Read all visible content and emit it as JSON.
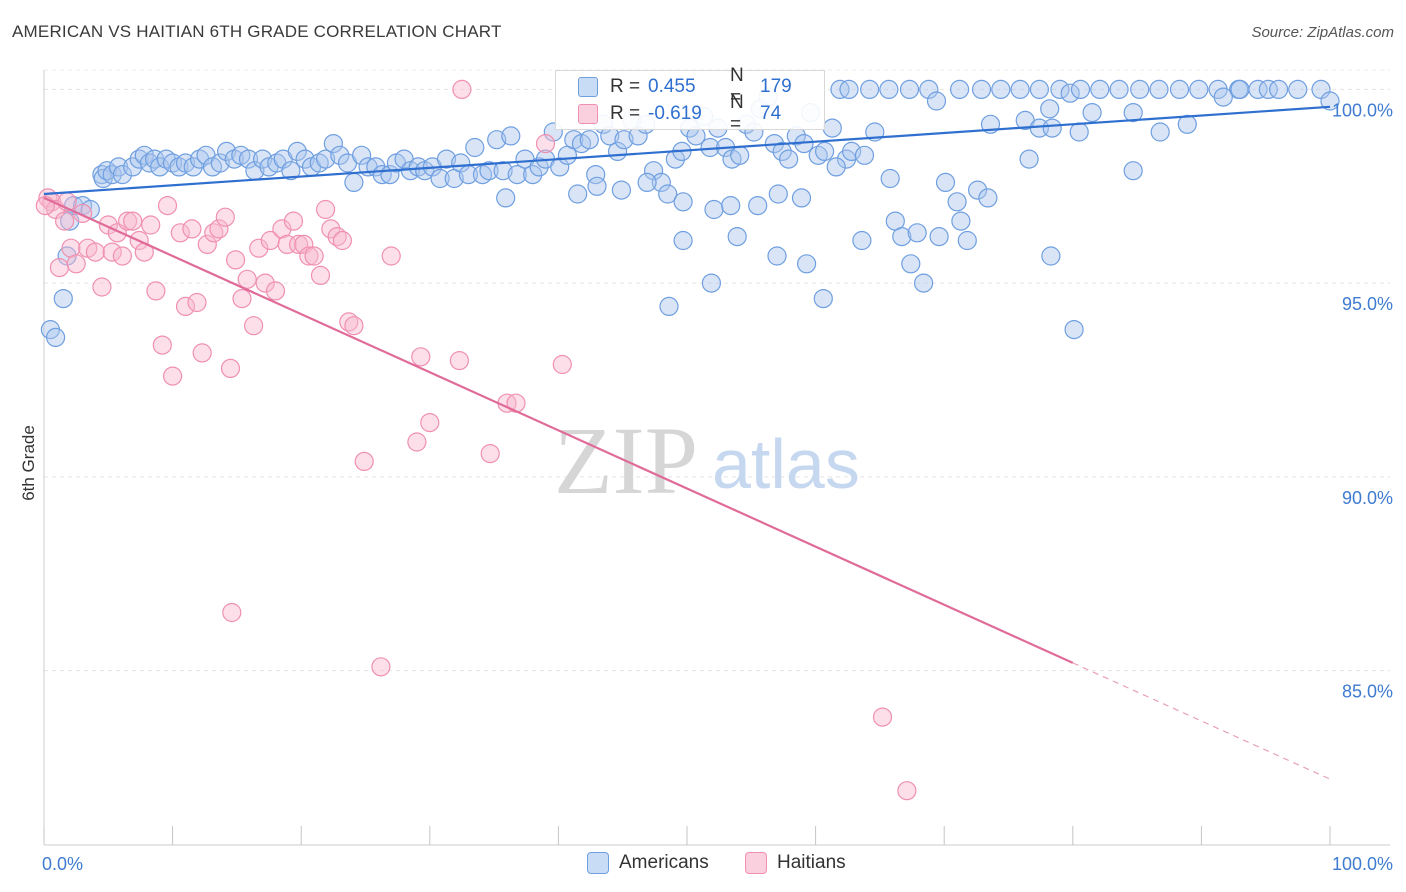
{
  "header": {
    "title": "AMERICAN VS HAITIAN 6TH GRADE CORRELATION CHART",
    "source": "Source: ZipAtlas.com"
  },
  "watermark": {
    "part1": "ZIP",
    "part2": "atlas"
  },
  "legend": {
    "rows": [
      {
        "r_label": "R =",
        "r_value": "0.455",
        "n_label": "N =",
        "n_value": "179",
        "color": "#6f9fe0"
      },
      {
        "r_label": "R =",
        "r_value": "-0.619",
        "n_label": "N =",
        "n_value": "74",
        "color": "#f090b0"
      }
    ]
  },
  "chart_data": {
    "type": "scatter",
    "title": "AMERICAN VS HAITIAN 6TH GRADE CORRELATION CHART",
    "xlabel": "",
    "ylabel": "6th Grade",
    "xlim": [
      0,
      100
    ],
    "ylim": [
      80.5,
      100.5
    ],
    "x_tick_labels": [
      "0.0%",
      "100.0%"
    ],
    "y_ticks": [
      85,
      90,
      95,
      100
    ],
    "y_tick_labels": [
      "85.0%",
      "90.0%",
      "95.0%",
      "100.0%"
    ],
    "grid": true,
    "legend_position": "top-center",
    "series": [
      {
        "name": "Americans",
        "color": "#6f9fe0",
        "trend": {
          "x": [
            0,
            100
          ],
          "y": [
            97.3,
            99.55
          ],
          "style": "solid"
        },
        "points": [
          [
            0.5,
            93.8
          ],
          [
            0.9,
            93.6
          ],
          [
            1.5,
            94.6
          ],
          [
            1.8,
            95.7
          ],
          [
            2.0,
            96.6
          ],
          [
            2.3,
            97.0
          ],
          [
            3.0,
            97.0
          ],
          [
            3.6,
            96.9
          ],
          [
            4.5,
            97.8
          ],
          [
            4.6,
            97.7
          ],
          [
            4.9,
            97.9
          ],
          [
            5.3,
            97.8
          ],
          [
            5.8,
            98.0
          ],
          [
            6.1,
            97.8
          ],
          [
            6.9,
            98.0
          ],
          [
            7.4,
            98.2
          ],
          [
            7.8,
            98.3
          ],
          [
            8.2,
            98.1
          ],
          [
            8.6,
            98.2
          ],
          [
            9.0,
            98.0
          ],
          [
            9.5,
            98.2
          ],
          [
            10.0,
            98.1
          ],
          [
            10.5,
            98.0
          ],
          [
            11.0,
            98.1
          ],
          [
            11.6,
            98.0
          ],
          [
            12.1,
            98.2
          ],
          [
            12.6,
            98.3
          ],
          [
            13.1,
            98.0
          ],
          [
            13.7,
            98.1
          ],
          [
            14.2,
            98.4
          ],
          [
            14.8,
            98.2
          ],
          [
            15.3,
            98.3
          ],
          [
            15.9,
            98.2
          ],
          [
            16.4,
            97.9
          ],
          [
            17.0,
            98.2
          ],
          [
            17.5,
            98.0
          ],
          [
            18.1,
            98.1
          ],
          [
            18.6,
            98.2
          ],
          [
            19.2,
            97.9
          ],
          [
            19.7,
            98.4
          ],
          [
            20.3,
            98.2
          ],
          [
            20.8,
            98.0
          ],
          [
            21.4,
            98.1
          ],
          [
            21.9,
            98.2
          ],
          [
            22.5,
            98.6
          ],
          [
            23.0,
            98.3
          ],
          [
            23.6,
            98.1
          ],
          [
            24.1,
            97.6
          ],
          [
            24.7,
            98.3
          ],
          [
            25.2,
            98.0
          ],
          [
            25.8,
            98.0
          ],
          [
            26.3,
            97.8
          ],
          [
            26.9,
            97.8
          ],
          [
            27.4,
            98.1
          ],
          [
            28.0,
            98.2
          ],
          [
            28.5,
            97.9
          ],
          [
            29.1,
            98.0
          ],
          [
            29.6,
            97.9
          ],
          [
            30.2,
            98.0
          ],
          [
            30.8,
            97.7
          ],
          [
            31.3,
            98.2
          ],
          [
            31.9,
            97.7
          ],
          [
            32.4,
            98.1
          ],
          [
            33.0,
            97.8
          ],
          [
            33.5,
            98.5
          ],
          [
            34.1,
            97.8
          ],
          [
            34.6,
            97.9
          ],
          [
            35.2,
            98.7
          ],
          [
            35.7,
            97.9
          ],
          [
            36.3,
            98.8
          ],
          [
            36.8,
            97.8
          ],
          [
            37.4,
            98.2
          ],
          [
            38.0,
            97.8
          ],
          [
            38.5,
            98.0
          ],
          [
            39.0,
            98.2
          ],
          [
            39.6,
            98.9
          ],
          [
            40.1,
            98.0
          ],
          [
            40.7,
            98.3
          ],
          [
            41.2,
            98.7
          ],
          [
            41.8,
            98.6
          ],
          [
            42.4,
            98.7
          ],
          [
            42.9,
            97.8
          ],
          [
            43.5,
            99.1
          ],
          [
            44.0,
            98.8
          ],
          [
            44.6,
            98.4
          ],
          [
            45.1,
            98.7
          ],
          [
            45.7,
            99.2
          ],
          [
            46.2,
            98.8
          ],
          [
            46.8,
            99.1
          ],
          [
            47.4,
            97.9
          ],
          [
            48.0,
            97.6
          ],
          [
            48.5,
            97.3
          ],
          [
            49.1,
            98.2
          ],
          [
            49.6,
            98.4
          ],
          [
            50.2,
            99.0
          ],
          [
            50.7,
            98.8
          ],
          [
            51.3,
            99.3
          ],
          [
            51.8,
            98.5
          ],
          [
            52.4,
            99.0
          ],
          [
            53.0,
            98.5
          ],
          [
            53.5,
            98.2
          ],
          [
            54.1,
            98.3
          ],
          [
            54.6,
            99.1
          ],
          [
            55.2,
            98.9
          ],
          [
            55.7,
            99.5
          ],
          [
            56.3,
            99.8
          ],
          [
            56.8,
            98.6
          ],
          [
            57.4,
            98.4
          ],
          [
            57.9,
            98.2
          ],
          [
            58.5,
            98.8
          ],
          [
            59.1,
            98.6
          ],
          [
            59.6,
            99.4
          ],
          [
            60.2,
            98.3
          ],
          [
            60.7,
            98.4
          ],
          [
            61.3,
            99.0
          ],
          [
            61.9,
            100.0
          ],
          [
            62.4,
            98.2
          ],
          [
            35.9,
            97.2
          ],
          [
            41.5,
            97.3
          ],
          [
            43.0,
            97.5
          ],
          [
            44.9,
            97.4
          ],
          [
            46.9,
            97.6
          ],
          [
            49.7,
            97.1
          ],
          [
            52.1,
            96.9
          ],
          [
            53.4,
            97.0
          ],
          [
            55.5,
            97.0
          ],
          [
            57.1,
            97.3
          ],
          [
            58.9,
            97.2
          ],
          [
            61.6,
            98.0
          ],
          [
            62.8,
            98.4
          ],
          [
            63.8,
            98.3
          ],
          [
            64.6,
            98.9
          ],
          [
            65.8,
            97.7
          ],
          [
            66.2,
            96.6
          ],
          [
            66.7,
            96.2
          ],
          [
            67.4,
            95.5
          ],
          [
            67.9,
            96.3
          ],
          [
            68.4,
            95.0
          ],
          [
            69.6,
            96.2
          ],
          [
            71.0,
            97.1
          ],
          [
            71.8,
            96.1
          ],
          [
            72.6,
            97.4
          ],
          [
            73.4,
            97.2
          ],
          [
            62.6,
            100.0
          ],
          [
            64.2,
            100.0
          ],
          [
            65.7,
            100.0
          ],
          [
            67.3,
            100.0
          ],
          [
            68.8,
            100.0
          ],
          [
            69.4,
            99.7
          ],
          [
            71.2,
            100.0
          ],
          [
            72.9,
            100.0
          ],
          [
            73.6,
            99.1
          ],
          [
            74.4,
            100.0
          ],
          [
            75.9,
            100.0
          ],
          [
            77.4,
            100.0
          ],
          [
            78.2,
            99.5
          ],
          [
            79.0,
            100.0
          ],
          [
            79.8,
            99.9
          ],
          [
            80.6,
            100.0
          ],
          [
            82.1,
            100.0
          ],
          [
            83.6,
            100.0
          ],
          [
            85.2,
            100.0
          ],
          [
            86.7,
            100.0
          ],
          [
            88.3,
            100.0
          ],
          [
            89.8,
            100.0
          ],
          [
            91.3,
            100.0
          ],
          [
            92.9,
            100.0
          ],
          [
            94.4,
            100.0
          ],
          [
            95.2,
            100.0
          ],
          [
            96.0,
            100.0
          ],
          [
            97.5,
            100.0
          ],
          [
            80.5,
            98.9
          ],
          [
            81.5,
            99.4
          ],
          [
            84.7,
            99.4
          ],
          [
            86.8,
            98.9
          ],
          [
            91.7,
            99.8
          ],
          [
            93.0,
            100.0
          ],
          [
            76.3,
            99.2
          ],
          [
            76.6,
            98.2
          ],
          [
            77.4,
            99.0
          ],
          [
            78.4,
            99.0
          ],
          [
            84.7,
            97.9
          ],
          [
            88.9,
            99.1
          ],
          [
            99.3,
            100.0
          ],
          [
            100.0,
            99.7
          ],
          [
            53.9,
            96.2
          ],
          [
            49.7,
            96.1
          ],
          [
            48.6,
            94.4
          ],
          [
            51.9,
            95.0
          ],
          [
            57.0,
            95.7
          ],
          [
            59.3,
            95.5
          ],
          [
            60.6,
            94.6
          ],
          [
            63.6,
            96.1
          ],
          [
            70.1,
            97.6
          ],
          [
            71.3,
            96.6
          ],
          [
            78.3,
            95.7
          ],
          [
            80.1,
            93.8
          ]
        ]
      },
      {
        "name": "Haitians",
        "color": "#f090b0",
        "trend": {
          "x": [
            0,
            80.0
          ],
          "y": [
            97.2,
            85.2
          ],
          "style": "solid",
          "extension_x": [
            80.0,
            100
          ],
          "extension_style": "dashed"
        },
        "points": [
          [
            0.3,
            97.2
          ],
          [
            0.6,
            97.1
          ],
          [
            0.9,
            96.9
          ],
          [
            1.2,
            95.4
          ],
          [
            1.6,
            96.6
          ],
          [
            2.1,
            95.9
          ],
          [
            2.5,
            95.5
          ],
          [
            3.0,
            96.8
          ],
          [
            3.4,
            95.9
          ],
          [
            4.0,
            95.8
          ],
          [
            4.5,
            94.9
          ],
          [
            5.0,
            96.5
          ],
          [
            5.3,
            95.8
          ],
          [
            5.7,
            96.3
          ],
          [
            6.1,
            95.7
          ],
          [
            6.5,
            96.6
          ],
          [
            6.9,
            96.6
          ],
          [
            7.4,
            96.1
          ],
          [
            7.8,
            95.8
          ],
          [
            8.3,
            96.5
          ],
          [
            8.7,
            94.8
          ],
          [
            9.2,
            93.4
          ],
          [
            9.6,
            97.0
          ],
          [
            10.0,
            92.6
          ],
          [
            10.6,
            96.3
          ],
          [
            11.0,
            94.4
          ],
          [
            11.5,
            96.4
          ],
          [
            11.9,
            94.5
          ],
          [
            12.3,
            93.2
          ],
          [
            12.7,
            96.0
          ],
          [
            13.2,
            96.3
          ],
          [
            13.6,
            96.4
          ],
          [
            14.1,
            96.7
          ],
          [
            14.5,
            92.8
          ],
          [
            14.9,
            95.6
          ],
          [
            15.4,
            94.6
          ],
          [
            15.8,
            95.1
          ],
          [
            16.3,
            93.9
          ],
          [
            16.7,
            95.9
          ],
          [
            17.2,
            95.0
          ],
          [
            17.6,
            96.1
          ],
          [
            18.0,
            94.8
          ],
          [
            18.5,
            96.4
          ],
          [
            18.9,
            96.0
          ],
          [
            19.4,
            96.6
          ],
          [
            19.8,
            96.0
          ],
          [
            20.2,
            96.0
          ],
          [
            20.6,
            95.7
          ],
          [
            21.0,
            95.7
          ],
          [
            21.5,
            95.2
          ],
          [
            21.9,
            96.9
          ],
          [
            22.3,
            96.4
          ],
          [
            22.8,
            96.2
          ],
          [
            23.2,
            96.1
          ],
          [
            23.7,
            94.0
          ],
          [
            24.1,
            93.9
          ],
          [
            27.0,
            95.7
          ],
          [
            29.0,
            90.9
          ],
          [
            29.3,
            93.1
          ],
          [
            30.0,
            91.4
          ],
          [
            32.3,
            93.0
          ],
          [
            32.5,
            100.0
          ],
          [
            34.7,
            90.6
          ],
          [
            36.0,
            91.9
          ],
          [
            36.7,
            91.9
          ],
          [
            39.0,
            98.6
          ],
          [
            40.3,
            92.9
          ],
          [
            24.9,
            90.4
          ],
          [
            14.6,
            86.5
          ],
          [
            26.2,
            85.1
          ],
          [
            65.2,
            83.8
          ],
          [
            67.1,
            81.9
          ],
          [
            0.1,
            97.0
          ],
          [
            1.8,
            97.1
          ]
        ]
      }
    ]
  }
}
